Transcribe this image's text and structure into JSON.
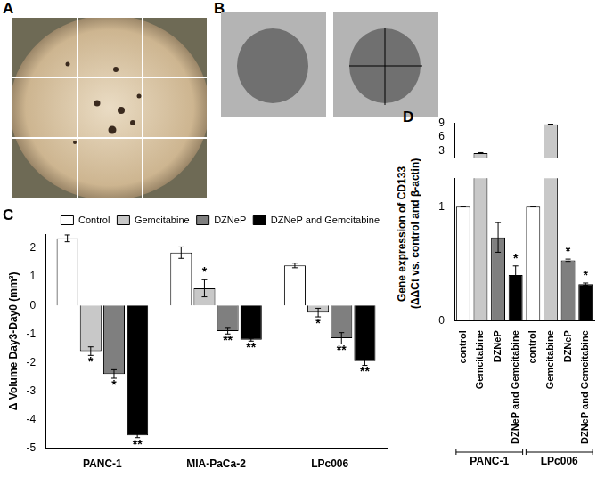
{
  "photo_panels": [
    "A",
    "B"
  ],
  "chart_data": [
    {
      "type": "bar",
      "title": "C",
      "categories": [
        "PANC-1",
        "MIA-PaCa-2",
        "LPc006"
      ],
      "y_label": "Δ Volume Day3-Day0 (mm³)",
      "ylim": [
        -5,
        2.5
      ],
      "yticks": [
        -5,
        -4,
        -3,
        -2,
        -1,
        0,
        1,
        2
      ],
      "grid": false,
      "legend": "top",
      "series": [
        {
          "name": "Control",
          "color": "#ffffff",
          "values": [
            2.35,
            1.85,
            1.4
          ],
          "errors": [
            0.12,
            0.2,
            0.08
          ],
          "annotations": [
            null,
            null,
            null
          ]
        },
        {
          "name": "Gemcitabine",
          "color": "#c8c8c8",
          "values": [
            -1.6,
            0.6,
            -0.25
          ],
          "errors": [
            0.15,
            0.3,
            0.15
          ],
          "annotations": [
            "*",
            "*",
            "*"
          ]
        },
        {
          "name": "DZNeP",
          "color": "#7f7f7f",
          "values": [
            -2.4,
            -0.9,
            -1.15
          ],
          "errors": [
            0.15,
            0.1,
            0.2
          ],
          "annotations": [
            "*",
            "**",
            "**"
          ]
        },
        {
          "name": "DZNeP and Gemcitabine",
          "color": "#000000",
          "values": [
            -4.55,
            -1.2,
            -1.95
          ],
          "errors": [
            0.08,
            0.05,
            0.15
          ],
          "annotations": [
            "**",
            "**",
            "**"
          ]
        }
      ]
    },
    {
      "type": "bar",
      "title": "D",
      "y_label": [
        "Gene expression of CD133",
        "(ΔΔCt vs. control and β-actin)"
      ],
      "ylim": [
        0,
        9
      ],
      "y_break": [
        1.25,
        1.5
      ],
      "yticks": [
        0,
        1,
        3,
        6,
        9
      ],
      "grid": false,
      "groups": [
        {
          "name": "PANC-1",
          "categories": [
            "control",
            "Gemcitabine",
            "DZNeP",
            "DZNeP and Gemcitabine"
          ],
          "colors": [
            "#ffffff",
            "#c8c8c8",
            "#7f7f7f",
            "#000000"
          ],
          "values": [
            1,
            2.6,
            0.73,
            0.4
          ],
          "errors": [
            0,
            0.1,
            0.13,
            0.08
          ],
          "annotations": [
            null,
            null,
            null,
            "*"
          ]
        },
        {
          "name": "LPc006",
          "categories": [
            "control",
            "Gemcitabine",
            "DZNeP",
            "DZNeP and Gemcitabine"
          ],
          "colors": [
            "#ffffff",
            "#c8c8c8",
            "#7f7f7f",
            "#000000"
          ],
          "values": [
            1,
            8.7,
            0.53,
            0.32
          ],
          "errors": [
            0,
            0.05,
            0.01,
            0.01
          ],
          "annotations": [
            null,
            null,
            "*",
            "*"
          ]
        }
      ]
    }
  ]
}
